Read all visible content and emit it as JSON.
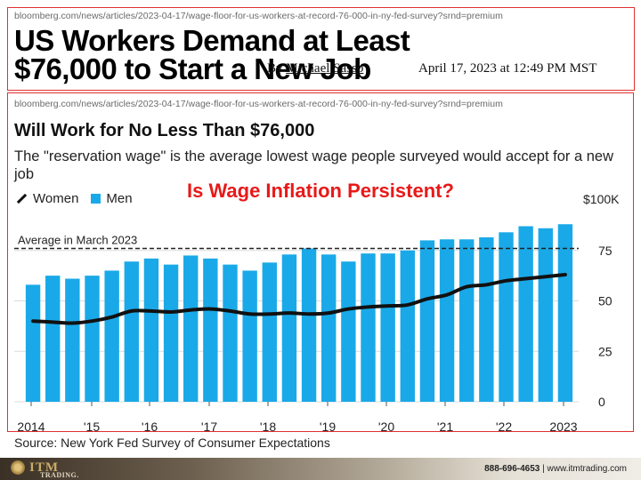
{
  "top_url": "bloomberg.com/news/articles/2023-04-17/wage-floor-for-us-workers-at-record-76-000-in-ny-fed-survey?srnd=premium",
  "headline": "US Workers Demand at Least $76,000 to Start a New Job",
  "byline_prefix": "By",
  "author": "Michael Sasso",
  "date": "April 17, 2023 at 12:49 PM MST",
  "chart_url": "bloomberg.com/news/articles/2023-04-17/wage-floor-for-us-workers-at-record-76-000-in-ny-fed-survey?srnd=premium",
  "overlay_text": "Is Wage Inflation Persistent?",
  "footer": {
    "logo": "ITM",
    "logo_sub": "TRADING.",
    "phone": "888-696-4653",
    "separator": "|",
    "website": "www.itmtrading.com"
  },
  "colors": {
    "men": "#1aa9e8",
    "women": "#111111",
    "frame": "#e03030",
    "overlay": "#e81919"
  },
  "chart_data": {
    "type": "bar",
    "title": "Will Work for No Less Than $76,000",
    "subtitle": "The \"reservation wage\" is the average lowest wage people surveyed would accept for a new job",
    "unit_label": "$100K",
    "source": "Source: New York Fed Survey of Consumer Expectations",
    "reference_line": {
      "label": "Average in March 2023",
      "value": 76
    },
    "x_tick_labels": [
      "2014",
      "'15",
      "'16",
      "'17",
      "'18",
      "'19",
      "'20",
      "'21",
      "'22",
      "2023"
    ],
    "y_ticks": [
      0,
      25,
      50,
      75
    ],
    "ylim": [
      0,
      100
    ],
    "legend_position": "top-left",
    "categories": [
      "Mar 2014",
      "Jul 2014",
      "Nov 2014",
      "Mar 2015",
      "Jul 2015",
      "Nov 2015",
      "Mar 2016",
      "Jul 2016",
      "Nov 2016",
      "Mar 2017",
      "Jul 2017",
      "Nov 2017",
      "Mar 2018",
      "Jul 2018",
      "Nov 2018",
      "Mar 2019",
      "Jul 2019",
      "Nov 2019",
      "Mar 2020",
      "Jul 2020",
      "Nov 2020",
      "Mar 2021",
      "Jul 2021",
      "Nov 2021",
      "Mar 2022",
      "Jul 2022",
      "Nov 2022",
      "Mar 2023"
    ],
    "series": [
      {
        "name": "Women",
        "type": "line",
        "values": [
          40,
          39.5,
          39,
          40,
          42,
          45,
          45,
          44.5,
          45.5,
          46,
          45,
          43.5,
          43.5,
          44,
          43.5,
          44,
          46,
          47,
          47.5,
          48,
          51,
          53,
          57,
          58,
          60,
          61,
          62,
          63
        ]
      },
      {
        "name": "Men",
        "type": "bar",
        "values": [
          58,
          62.5,
          61,
          62.5,
          65,
          69.5,
          71,
          68,
          72.5,
          71,
          68,
          65,
          69,
          73,
          76,
          73,
          69.5,
          73.5,
          73.5,
          75,
          80,
          80.5,
          80.5,
          81.5,
          84,
          87,
          86,
          88
        ]
      }
    ]
  }
}
